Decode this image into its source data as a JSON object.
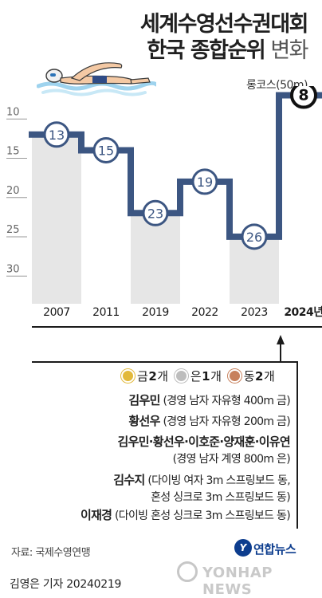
{
  "title": {
    "line1": "세계수영선수권대회",
    "line2_bold": "한국 종합순위",
    "line2_light": "변화"
  },
  "subtitle": "롱코스(50m)",
  "chart_data": {
    "type": "line",
    "title": "세계수영선수권대회 한국 종합순위 변화",
    "subtitle": "롱코스(50m)",
    "categories": [
      "2007",
      "2011",
      "2019",
      "2022",
      "2023",
      "2024년"
    ],
    "values": [
      13,
      15,
      23,
      19,
      26,
      8
    ],
    "value_labels": [
      "13",
      "15",
      "23",
      "19",
      "26",
      "8"
    ],
    "y_ticks": [
      "5",
      "10",
      "15",
      "20",
      "25",
      "30"
    ],
    "ylim": [
      5,
      32
    ],
    "y_inverted": true,
    "step_line": true,
    "grid": false,
    "colors": {
      "line": "#3c5682",
      "band": "#e6e6e6",
      "axis": "#1b1b1b"
    }
  },
  "medals": {
    "gold": {
      "label": "금",
      "count": "2",
      "unit": "개",
      "color": "#e2b93b"
    },
    "silver": {
      "label": "은",
      "count": "1",
      "unit": "개",
      "color": "#bdbdbd"
    },
    "bronze": {
      "label": "동",
      "count": "2",
      "unit": "개",
      "color": "#c7805c"
    }
  },
  "entries": [
    {
      "name": "김우민",
      "detail": "(경영 남자 자유형 400m 금)"
    },
    {
      "name": "황선우",
      "detail": "(경영 남자 자유형 200m 금)"
    },
    {
      "name": "김우민·황선우·이호준·양재훈·이유연",
      "detail": "(경영 남자 계영 800m 은)"
    },
    {
      "name": "김수지",
      "detail": "(다이빙 여자 3m 스프링보드 동,",
      "detail2": "혼성 싱크로 3m 스프링보드 동)"
    },
    {
      "name": "이재경",
      "detail": "(다이빙 혼성 싱크로 3m 스프링보드 동)"
    }
  ],
  "source": "자료: 국제수영연맹",
  "logo": {
    "badge": "Y",
    "text": "연합뉴스"
  },
  "watermark": "YONHAP NEWS",
  "byline": "김영은 기자  20240219",
  "icons": {
    "swimmer": "swimmer-icon",
    "pointer": "pointer-icon"
  }
}
